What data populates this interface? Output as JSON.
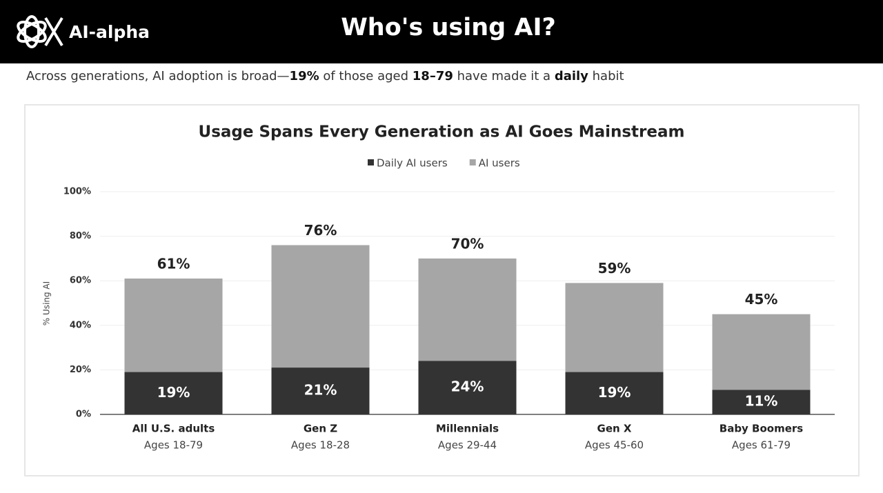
{
  "header": {
    "logo": "AI-alpha",
    "title": "Who's using AI?"
  },
  "subtitle": [
    {
      "text": "Across generations, AI adoption is broad—"
    },
    {
      "text": "19%",
      "bold": true
    },
    {
      "text": " of those aged "
    },
    {
      "text": "18–79",
      "bold": true
    },
    {
      "text": " have made it a "
    },
    {
      "text": "daily",
      "bold": true
    },
    {
      "text": " habit"
    }
  ],
  "chart_data": {
    "type": "bar",
    "barmode": "overlay",
    "title": "Usage Spans Every Generation as AI Goes Mainstream",
    "y_label": "% Using AI",
    "categories": [
      "All U.S. adults",
      "Gen Z",
      "Millennials",
      "Gen X",
      "Baby Boomers"
    ],
    "category_sublabels": [
      "Ages 18-79",
      "Ages 18-28",
      "Ages 29-44",
      "Ages 45-60",
      "Ages 61-79"
    ],
    "series": [
      {
        "name": "Daily AI users",
        "color": "#333333",
        "values": [
          19,
          21,
          24,
          19,
          11
        ],
        "value_labels": [
          "19%",
          "21%",
          "24%",
          "19%",
          "11%"
        ]
      },
      {
        "name": "AI users",
        "color": "#a6a6a6",
        "values": [
          61,
          76,
          70,
          59,
          45
        ],
        "value_labels": [
          "61%",
          "76%",
          "70%",
          "59%",
          "45%"
        ]
      }
    ],
    "ylim": [
      0,
      100
    ],
    "yticks": [
      {
        "value": 0,
        "label": "0%"
      },
      {
        "value": 20,
        "label": "20%"
      },
      {
        "value": 40,
        "label": "40%"
      },
      {
        "value": 60,
        "label": "60%"
      },
      {
        "value": 80,
        "label": "80%"
      },
      {
        "value": 100,
        "label": "100%"
      }
    ],
    "grid": true
  }
}
